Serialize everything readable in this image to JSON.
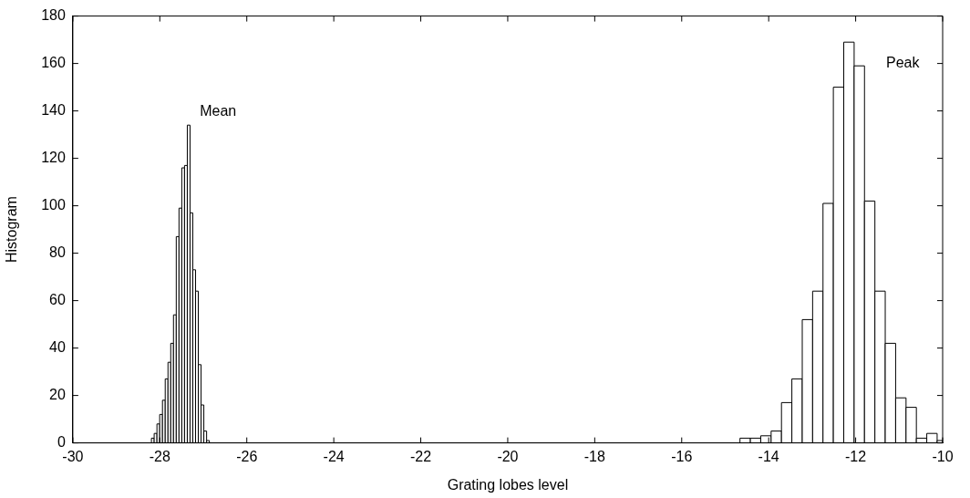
{
  "chart_data": {
    "type": "histogram",
    "xlabel": "Grating lobes level",
    "ylabel": "Histogram",
    "xlim": [
      -30,
      -10
    ],
    "xticks": [
      -30,
      -28,
      -26,
      -24,
      -22,
      -20,
      -18,
      -16,
      -14,
      -12,
      -10
    ],
    "ylim": [
      0,
      180
    ],
    "yticks": [
      0,
      20,
      40,
      60,
      80,
      100,
      120,
      140,
      160,
      180
    ],
    "bins": [
      -28.193,
      -28.13,
      -28.066,
      -28.003,
      -27.939,
      -27.876,
      -27.812,
      -27.749,
      -27.686,
      -27.622,
      -27.559,
      -27.495,
      -27.432,
      -27.368,
      -27.305,
      -27.242,
      -27.178,
      -27.115,
      -27.051,
      -26.988,
      -26.924,
      -26.861,
      -14.66,
      -14.421,
      -14.183,
      -13.944,
      -13.706,
      -13.467,
      -13.228,
      -12.99,
      -12.751,
      -12.513,
      -12.274,
      -12.035,
      -11.797,
      -11.558,
      -11.32,
      -11.081,
      -10.842,
      -10.604,
      -10.365,
      -10.127,
      -10
    ],
    "values": [
      2,
      4,
      8,
      12,
      18,
      27,
      34,
      42,
      54,
      87,
      99,
      116,
      117,
      134,
      97,
      73,
      64,
      33,
      16,
      5,
      1,
      0,
      2,
      2,
      3,
      5,
      17,
      27,
      52,
      64,
      101,
      150,
      169,
      159,
      102,
      64,
      42,
      19,
      15,
      2,
      4,
      1
    ],
    "color": "#ffffff",
    "annotations": [
      "Mean",
      "Peak"
    ]
  }
}
